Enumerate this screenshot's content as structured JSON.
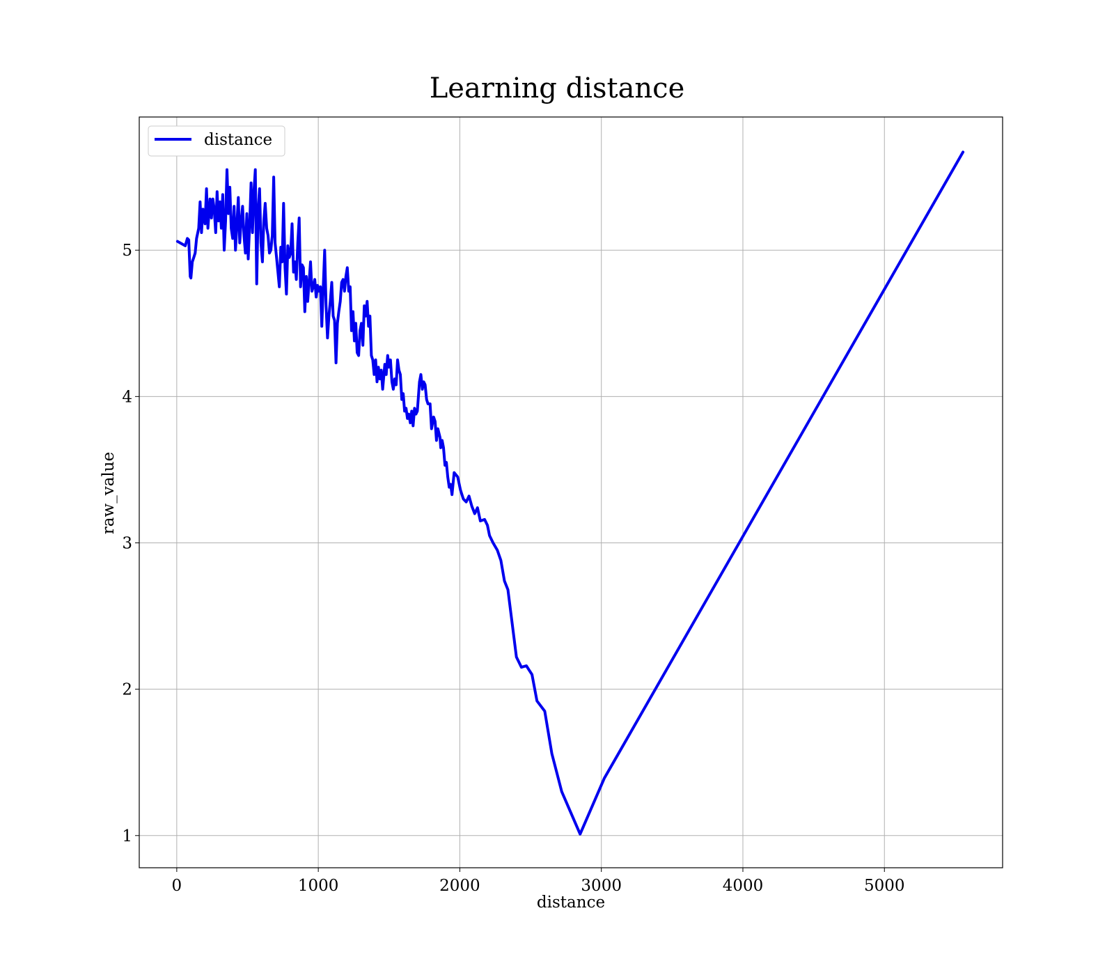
{
  "chart_data": {
    "type": "line",
    "title": "Learning distance",
    "xlabel": "distance",
    "ylabel": "raw_value",
    "xlim": [
      -265,
      5835
    ],
    "ylim": [
      0.78,
      5.91
    ],
    "xticks": [
      0,
      1000,
      2000,
      3000,
      4000,
      5000
    ],
    "yticks": [
      1,
      2,
      3,
      4,
      5
    ],
    "xtick_labels": [
      "0",
      "1000",
      "2000",
      "3000",
      "4000",
      "5000"
    ],
    "ytick_labels": [
      "1",
      "2",
      "3",
      "4",
      "5"
    ],
    "grid": true,
    "legend_position": "upper-left",
    "series": [
      {
        "name": "distance",
        "color": "#0000ee",
        "points": [
          [
            5,
            5.06
          ],
          [
            60,
            5.03
          ],
          [
            75,
            5.08
          ],
          [
            85,
            5.07
          ],
          [
            95,
            4.82
          ],
          [
            100,
            4.81
          ],
          [
            110,
            4.92
          ],
          [
            120,
            4.95
          ],
          [
            130,
            4.98
          ],
          [
            140,
            5.08
          ],
          [
            155,
            5.15
          ],
          [
            165,
            5.33
          ],
          [
            175,
            5.12
          ],
          [
            185,
            5.28
          ],
          [
            200,
            5.18
          ],
          [
            210,
            5.42
          ],
          [
            220,
            5.15
          ],
          [
            235,
            5.35
          ],
          [
            245,
            5.22
          ],
          [
            255,
            5.35
          ],
          [
            265,
            5.28
          ],
          [
            275,
            5.12
          ],
          [
            285,
            5.4
          ],
          [
            295,
            5.2
          ],
          [
            305,
            5.33
          ],
          [
            315,
            5.15
          ],
          [
            325,
            5.38
          ],
          [
            335,
            5.0
          ],
          [
            345,
            5.2
          ],
          [
            350,
            5.38
          ],
          [
            355,
            5.55
          ],
          [
            365,
            5.25
          ],
          [
            375,
            5.43
          ],
          [
            385,
            5.15
          ],
          [
            395,
            5.08
          ],
          [
            405,
            5.3
          ],
          [
            415,
            5.0
          ],
          [
            425,
            5.18
          ],
          [
            435,
            5.36
          ],
          [
            445,
            5.05
          ],
          [
            455,
            5.2
          ],
          [
            465,
            5.3
          ],
          [
            475,
            5.1
          ],
          [
            485,
            4.98
          ],
          [
            495,
            5.25
          ],
          [
            505,
            4.94
          ],
          [
            515,
            5.18
          ],
          [
            525,
            5.46
          ],
          [
            535,
            5.12
          ],
          [
            545,
            5.4
          ],
          [
            555,
            5.55
          ],
          [
            565,
            4.77
          ],
          [
            575,
            5.28
          ],
          [
            585,
            5.42
          ],
          [
            595,
            5.05
          ],
          [
            605,
            4.92
          ],
          [
            615,
            5.2
          ],
          [
            625,
            5.32
          ],
          [
            635,
            5.15
          ],
          [
            645,
            5.1
          ],
          [
            655,
            4.98
          ],
          [
            665,
            5.0
          ],
          [
            675,
            5.1
          ],
          [
            685,
            5.5
          ],
          [
            695,
            5.05
          ],
          [
            705,
            4.95
          ],
          [
            715,
            4.85
          ],
          [
            725,
            4.75
          ],
          [
            735,
            5.02
          ],
          [
            745,
            4.92
          ],
          [
            755,
            5.32
          ],
          [
            765,
            4.88
          ],
          [
            775,
            4.7
          ],
          [
            785,
            5.03
          ],
          [
            795,
            4.95
          ],
          [
            805,
            4.98
          ],
          [
            815,
            5.18
          ],
          [
            825,
            4.85
          ],
          [
            835,
            4.92
          ],
          [
            845,
            4.8
          ],
          [
            855,
            5.05
          ],
          [
            865,
            5.22
          ],
          [
            875,
            4.75
          ],
          [
            885,
            4.9
          ],
          [
            895,
            4.88
          ],
          [
            905,
            4.58
          ],
          [
            915,
            4.82
          ],
          [
            925,
            4.65
          ],
          [
            935,
            4.78
          ],
          [
            945,
            4.92
          ],
          [
            955,
            4.72
          ],
          [
            965,
            4.75
          ],
          [
            975,
            4.8
          ],
          [
            985,
            4.68
          ],
          [
            995,
            4.76
          ],
          [
            1005,
            4.72
          ],
          [
            1015,
            4.75
          ],
          [
            1025,
            4.48
          ],
          [
            1035,
            4.75
          ],
          [
            1045,
            5.0
          ],
          [
            1055,
            4.62
          ],
          [
            1065,
            4.4
          ],
          [
            1075,
            4.55
          ],
          [
            1085,
            4.65
          ],
          [
            1095,
            4.78
          ],
          [
            1105,
            4.55
          ],
          [
            1115,
            4.52
          ],
          [
            1125,
            4.23
          ],
          [
            1135,
            4.5
          ],
          [
            1145,
            4.58
          ],
          [
            1155,
            4.65
          ],
          [
            1165,
            4.78
          ],
          [
            1175,
            4.8
          ],
          [
            1185,
            4.72
          ],
          [
            1195,
            4.82
          ],
          [
            1205,
            4.88
          ],
          [
            1215,
            4.72
          ],
          [
            1225,
            4.75
          ],
          [
            1235,
            4.45
          ],
          [
            1245,
            4.58
          ],
          [
            1255,
            4.38
          ],
          [
            1265,
            4.5
          ],
          [
            1275,
            4.3
          ],
          [
            1285,
            4.28
          ],
          [
            1295,
            4.45
          ],
          [
            1305,
            4.5
          ],
          [
            1315,
            4.35
          ],
          [
            1325,
            4.62
          ],
          [
            1335,
            4.55
          ],
          [
            1345,
            4.65
          ],
          [
            1355,
            4.48
          ],
          [
            1365,
            4.55
          ],
          [
            1375,
            4.28
          ],
          [
            1385,
            4.25
          ],
          [
            1395,
            4.15
          ],
          [
            1405,
            4.25
          ],
          [
            1415,
            4.1
          ],
          [
            1425,
            4.2
          ],
          [
            1435,
            4.12
          ],
          [
            1445,
            4.18
          ],
          [
            1455,
            4.05
          ],
          [
            1470,
            4.22
          ],
          [
            1480,
            4.15
          ],
          [
            1490,
            4.28
          ],
          [
            1500,
            4.2
          ],
          [
            1510,
            4.25
          ],
          [
            1520,
            4.1
          ],
          [
            1530,
            4.05
          ],
          [
            1540,
            4.12
          ],
          [
            1550,
            4.08
          ],
          [
            1560,
            4.25
          ],
          [
            1570,
            4.18
          ],
          [
            1580,
            4.15
          ],
          [
            1590,
            3.98
          ],
          [
            1600,
            4.02
          ],
          [
            1610,
            3.9
          ],
          [
            1620,
            3.92
          ],
          [
            1630,
            3.85
          ],
          [
            1640,
            3.88
          ],
          [
            1650,
            3.82
          ],
          [
            1660,
            3.9
          ],
          [
            1670,
            3.8
          ],
          [
            1680,
            3.92
          ],
          [
            1690,
            3.88
          ],
          [
            1700,
            3.9
          ],
          [
            1715,
            4.1
          ],
          [
            1725,
            4.15
          ],
          [
            1735,
            4.05
          ],
          [
            1745,
            4.1
          ],
          [
            1755,
            4.08
          ],
          [
            1765,
            3.98
          ],
          [
            1775,
            3.95
          ],
          [
            1790,
            3.95
          ],
          [
            1800,
            3.78
          ],
          [
            1815,
            3.86
          ],
          [
            1825,
            3.83
          ],
          [
            1835,
            3.7
          ],
          [
            1845,
            3.78
          ],
          [
            1860,
            3.72
          ],
          [
            1865,
            3.65
          ],
          [
            1875,
            3.7
          ],
          [
            1885,
            3.65
          ],
          [
            1895,
            3.53
          ],
          [
            1905,
            3.55
          ],
          [
            1915,
            3.45
          ],
          [
            1925,
            3.38
          ],
          [
            1935,
            3.4
          ],
          [
            1945,
            3.33
          ],
          [
            1960,
            3.48
          ],
          [
            1985,
            3.45
          ],
          [
            2005,
            3.36
          ],
          [
            2025,
            3.3
          ],
          [
            2045,
            3.28
          ],
          [
            2065,
            3.32
          ],
          [
            2085,
            3.25
          ],
          [
            2105,
            3.2
          ],
          [
            2125,
            3.24
          ],
          [
            2145,
            3.15
          ],
          [
            2175,
            3.16
          ],
          [
            2195,
            3.12
          ],
          [
            2210,
            3.05
          ],
          [
            2235,
            3.0
          ],
          [
            2265,
            2.95
          ],
          [
            2290,
            2.88
          ],
          [
            2315,
            2.74
          ],
          [
            2340,
            2.68
          ],
          [
            2400,
            2.22
          ],
          [
            2435,
            2.15
          ],
          [
            2470,
            2.16
          ],
          [
            2510,
            2.1
          ],
          [
            2545,
            1.92
          ],
          [
            2600,
            1.85
          ],
          [
            2650,
            1.56
          ],
          [
            2720,
            1.3
          ],
          [
            2850,
            1.01
          ],
          [
            3020,
            1.39
          ],
          [
            5555,
            5.67
          ]
        ]
      }
    ]
  }
}
